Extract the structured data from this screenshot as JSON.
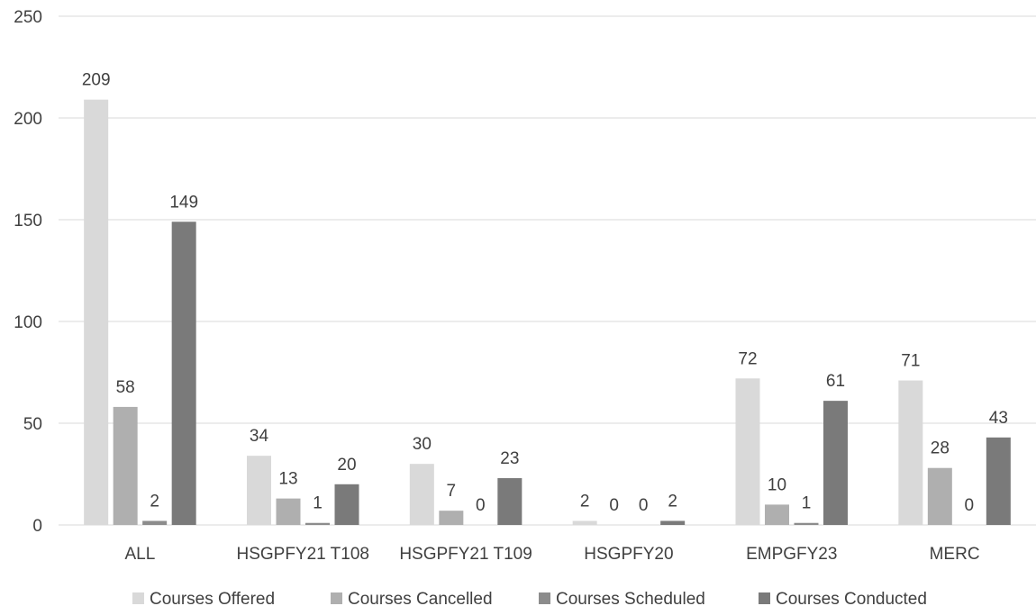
{
  "chart_data": {
    "type": "bar",
    "title": "",
    "xlabel": "",
    "ylabel": "",
    "ylim": [
      0,
      250
    ],
    "yticks": [
      0,
      50,
      100,
      150,
      200,
      250
    ],
    "grid": true,
    "legend_position": "bottom",
    "categories": [
      "ALL",
      "HSGPFY21 T108",
      "HSGPFY21 T109",
      "HSGPFY20",
      "EMPGFY23",
      "MERC"
    ],
    "series": [
      {
        "name": "Courses Offered",
        "color": "#d9d9d9",
        "values": [
          209,
          34,
          30,
          2,
          72,
          71
        ]
      },
      {
        "name": "Courses Cancelled",
        "color": "#afafaf",
        "values": [
          58,
          13,
          7,
          0,
          10,
          28
        ]
      },
      {
        "name": "Courses Scheduled",
        "color": "#8c8c8c",
        "values": [
          2,
          1,
          0,
          0,
          1,
          0
        ]
      },
      {
        "name": "Courses Conducted",
        "color": "#7a7a7a",
        "values": [
          149,
          20,
          23,
          2,
          61,
          43
        ]
      }
    ]
  }
}
